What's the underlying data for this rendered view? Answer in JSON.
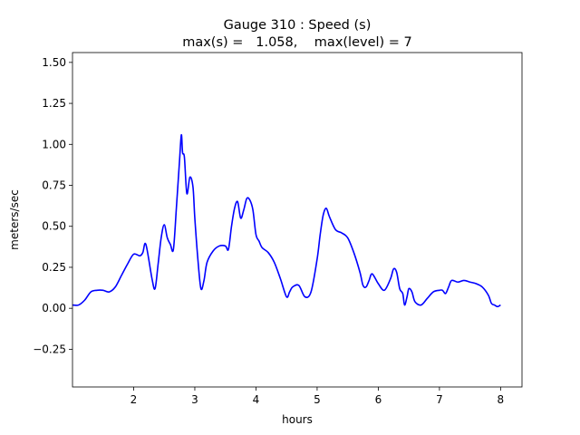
{
  "chart_data": {
    "type": "line",
    "title_line1": "Gauge 310 : Speed (s)",
    "title_line2": "max(s) =   1.058,    max(level) = 7",
    "xlabel": "hours",
    "ylabel": "meters/sec",
    "xlim": [
      1.0,
      8.35
    ],
    "ylim": [
      -0.48,
      1.56
    ],
    "xticks": [
      2,
      3,
      4,
      5,
      6,
      7,
      8
    ],
    "xtick_labels": [
      "2",
      "3",
      "4",
      "5",
      "6",
      "7",
      "8"
    ],
    "yticks": [
      -0.25,
      0.0,
      0.25,
      0.5,
      0.75,
      1.0,
      1.25,
      1.5
    ],
    "ytick_labels": [
      "−0.25",
      "0.00",
      "0.25",
      "0.50",
      "0.75",
      "1.00",
      "1.25",
      "1.50"
    ],
    "grid": false,
    "series": [
      {
        "color": "#0000ff",
        "x": [
          1.0,
          1.1,
          1.2,
          1.3,
          1.4,
          1.5,
          1.6,
          1.7,
          1.8,
          1.9,
          2.0,
          2.1,
          2.15,
          2.2,
          2.3,
          2.35,
          2.4,
          2.45,
          2.5,
          2.55,
          2.6,
          2.65,
          2.7,
          2.75,
          2.78,
          2.8,
          2.83,
          2.87,
          2.92,
          2.97,
          3.0,
          3.05,
          3.1,
          3.15,
          3.2,
          3.3,
          3.4,
          3.5,
          3.55,
          3.6,
          3.65,
          3.7,
          3.75,
          3.8,
          3.85,
          3.9,
          3.95,
          4.0,
          4.05,
          4.1,
          4.2,
          4.3,
          4.4,
          4.5,
          4.55,
          4.6,
          4.7,
          4.8,
          4.9,
          5.0,
          5.05,
          5.1,
          5.15,
          5.2,
          5.3,
          5.4,
          5.5,
          5.6,
          5.7,
          5.75,
          5.8,
          5.85,
          5.9,
          6.0,
          6.1,
          6.2,
          6.25,
          6.3,
          6.35,
          6.4,
          6.43,
          6.47,
          6.5,
          6.55,
          6.6,
          6.7,
          6.8,
          6.9,
          7.0,
          7.05,
          7.1,
          7.15,
          7.2,
          7.3,
          7.4,
          7.5,
          7.6,
          7.7,
          7.8,
          7.85,
          7.9,
          7.95,
          8.0
        ],
        "y": [
          0.02,
          0.02,
          0.05,
          0.1,
          0.11,
          0.11,
          0.1,
          0.13,
          0.2,
          0.27,
          0.33,
          0.32,
          0.34,
          0.39,
          0.18,
          0.12,
          0.27,
          0.43,
          0.51,
          0.43,
          0.39,
          0.36,
          0.62,
          0.9,
          1.058,
          0.95,
          0.92,
          0.7,
          0.8,
          0.74,
          0.55,
          0.3,
          0.12,
          0.17,
          0.28,
          0.35,
          0.38,
          0.38,
          0.36,
          0.5,
          0.61,
          0.65,
          0.55,
          0.6,
          0.67,
          0.66,
          0.6,
          0.45,
          0.41,
          0.37,
          0.34,
          0.28,
          0.18,
          0.07,
          0.1,
          0.13,
          0.14,
          0.07,
          0.1,
          0.3,
          0.45,
          0.57,
          0.61,
          0.56,
          0.48,
          0.46,
          0.43,
          0.34,
          0.22,
          0.14,
          0.13,
          0.17,
          0.21,
          0.15,
          0.11,
          0.18,
          0.24,
          0.22,
          0.12,
          0.09,
          0.02,
          0.07,
          0.12,
          0.1,
          0.04,
          0.02,
          0.06,
          0.1,
          0.11,
          0.11,
          0.09,
          0.13,
          0.17,
          0.16,
          0.17,
          0.16,
          0.15,
          0.13,
          0.08,
          0.03,
          0.02,
          0.01,
          0.02
        ]
      }
    ]
  }
}
